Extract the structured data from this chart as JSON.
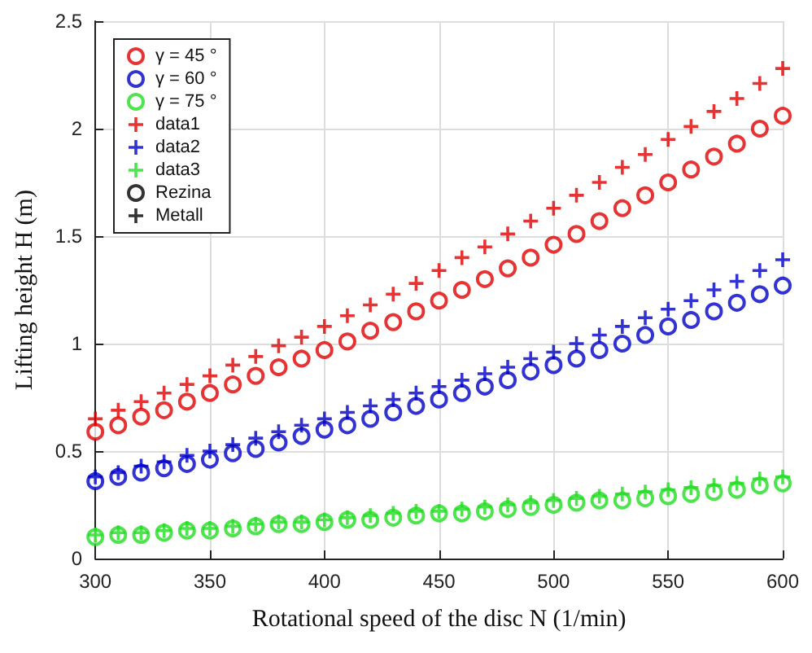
{
  "chart_data": {
    "type": "scatter",
    "xlabel": "Rotational speed of the disc N (1/min)",
    "ylabel": "Lifting height H (m)",
    "x": [
      300,
      310,
      320,
      330,
      340,
      350,
      360,
      370,
      380,
      390,
      400,
      410,
      420,
      430,
      440,
      450,
      460,
      470,
      480,
      490,
      500,
      510,
      520,
      530,
      540,
      550,
      560,
      570,
      580,
      590,
      600
    ],
    "xlim": [
      300,
      600
    ],
    "xticks": [
      300,
      350,
      400,
      450,
      500,
      550,
      600
    ],
    "ylim": [
      0,
      2.5
    ],
    "yticks": [
      0,
      0.5,
      1,
      1.5,
      2,
      2.5
    ],
    "grid": true,
    "legend": "top left",
    "series": [
      {
        "name": "γ = 45 °",
        "color": "#e00000",
        "marker": "circle",
        "values": [
          0.59,
          0.62,
          0.66,
          0.69,
          0.73,
          0.77,
          0.81,
          0.85,
          0.89,
          0.93,
          0.97,
          1.01,
          1.06,
          1.1,
          1.15,
          1.2,
          1.25,
          1.3,
          1.35,
          1.4,
          1.46,
          1.51,
          1.57,
          1.63,
          1.69,
          1.75,
          1.81,
          1.87,
          1.93,
          2.0,
          2.06
        ]
      },
      {
        "name": "γ = 60 °",
        "color": "#0000c8",
        "marker": "circle",
        "values": [
          0.36,
          0.38,
          0.4,
          0.42,
          0.44,
          0.46,
          0.49,
          0.51,
          0.54,
          0.57,
          0.6,
          0.62,
          0.65,
          0.68,
          0.71,
          0.74,
          0.77,
          0.8,
          0.83,
          0.87,
          0.9,
          0.93,
          0.97,
          1.0,
          1.04,
          1.08,
          1.11,
          1.15,
          1.19,
          1.23,
          1.27
        ]
      },
      {
        "name": "γ = 75 °",
        "color": "#22dd22",
        "marker": "circle",
        "values": [
          0.1,
          0.11,
          0.11,
          0.12,
          0.13,
          0.13,
          0.14,
          0.15,
          0.16,
          0.16,
          0.17,
          0.18,
          0.18,
          0.19,
          0.2,
          0.21,
          0.21,
          0.22,
          0.23,
          0.24,
          0.25,
          0.26,
          0.27,
          0.27,
          0.28,
          0.29,
          0.3,
          0.31,
          0.32,
          0.34,
          0.35
        ]
      },
      {
        "name": "data1",
        "color": "#e00000",
        "marker": "cross",
        "values": [
          0.65,
          0.69,
          0.73,
          0.77,
          0.81,
          0.85,
          0.9,
          0.94,
          0.99,
          1.03,
          1.08,
          1.13,
          1.18,
          1.23,
          1.28,
          1.34,
          1.4,
          1.45,
          1.51,
          1.57,
          1.63,
          1.69,
          1.75,
          1.82,
          1.88,
          1.95,
          2.01,
          2.08,
          2.14,
          2.21,
          2.28
        ]
      },
      {
        "name": "data2",
        "color": "#0000c8",
        "marker": "cross",
        "values": [
          0.38,
          0.4,
          0.43,
          0.45,
          0.48,
          0.5,
          0.53,
          0.56,
          0.59,
          0.62,
          0.65,
          0.68,
          0.71,
          0.74,
          0.77,
          0.8,
          0.83,
          0.86,
          0.89,
          0.93,
          0.96,
          1.0,
          1.04,
          1.08,
          1.12,
          1.16,
          1.2,
          1.25,
          1.29,
          1.34,
          1.39
        ]
      },
      {
        "name": "data3",
        "color": "#22dd22",
        "marker": "cross",
        "values": [
          0.11,
          0.12,
          0.12,
          0.13,
          0.14,
          0.14,
          0.15,
          0.16,
          0.17,
          0.17,
          0.18,
          0.19,
          0.2,
          0.21,
          0.22,
          0.22,
          0.23,
          0.24,
          0.25,
          0.26,
          0.27,
          0.28,
          0.29,
          0.3,
          0.31,
          0.32,
          0.33,
          0.34,
          0.35,
          0.37,
          0.38
        ]
      },
      {
        "name": "Rezina",
        "color": "#000000",
        "marker": "circle",
        "values": [
          null,
          null,
          null,
          null,
          null,
          null,
          null,
          null,
          null,
          null,
          null,
          null,
          null,
          null,
          null,
          null,
          null,
          null,
          null,
          null,
          null,
          null,
          null,
          null,
          null,
          null,
          null,
          null,
          null,
          null,
          null
        ]
      },
      {
        "name": "Metall",
        "color": "#000000",
        "marker": "cross",
        "values": [
          null,
          null,
          null,
          null,
          null,
          null,
          null,
          null,
          null,
          null,
          null,
          null,
          null,
          null,
          null,
          null,
          null,
          null,
          null,
          null,
          null,
          null,
          null,
          null,
          null,
          null,
          null,
          null,
          null,
          null,
          null
        ]
      }
    ]
  }
}
